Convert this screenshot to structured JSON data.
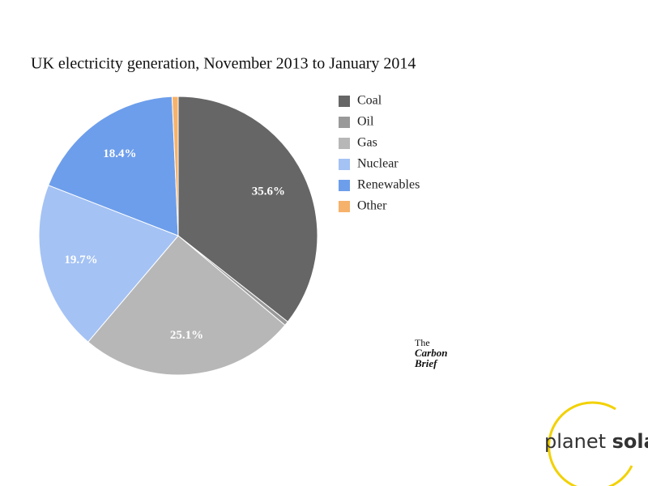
{
  "chart_data": {
    "type": "pie",
    "title": "UK electricity generation, November 2013 to January 2014",
    "categories": [
      "Coal",
      "Oil",
      "Gas",
      "Nuclear",
      "Renewables",
      "Other"
    ],
    "values": [
      35.6,
      0.5,
      25.1,
      19.7,
      18.4,
      0.7
    ],
    "value_labels": [
      "35.6%",
      null,
      "25.1%",
      "19.7%",
      "18.4%",
      null
    ],
    "colors": [
      "#666666",
      "#999999",
      "#b7b7b7",
      "#a4c2f4",
      "#6d9eeb",
      "#f6b26b"
    ],
    "legend": "right"
  },
  "logos": {
    "carbon_brief": [
      "The",
      "Carbon",
      "Brief"
    ],
    "planet_solar": [
      "planet",
      "solar"
    ]
  }
}
